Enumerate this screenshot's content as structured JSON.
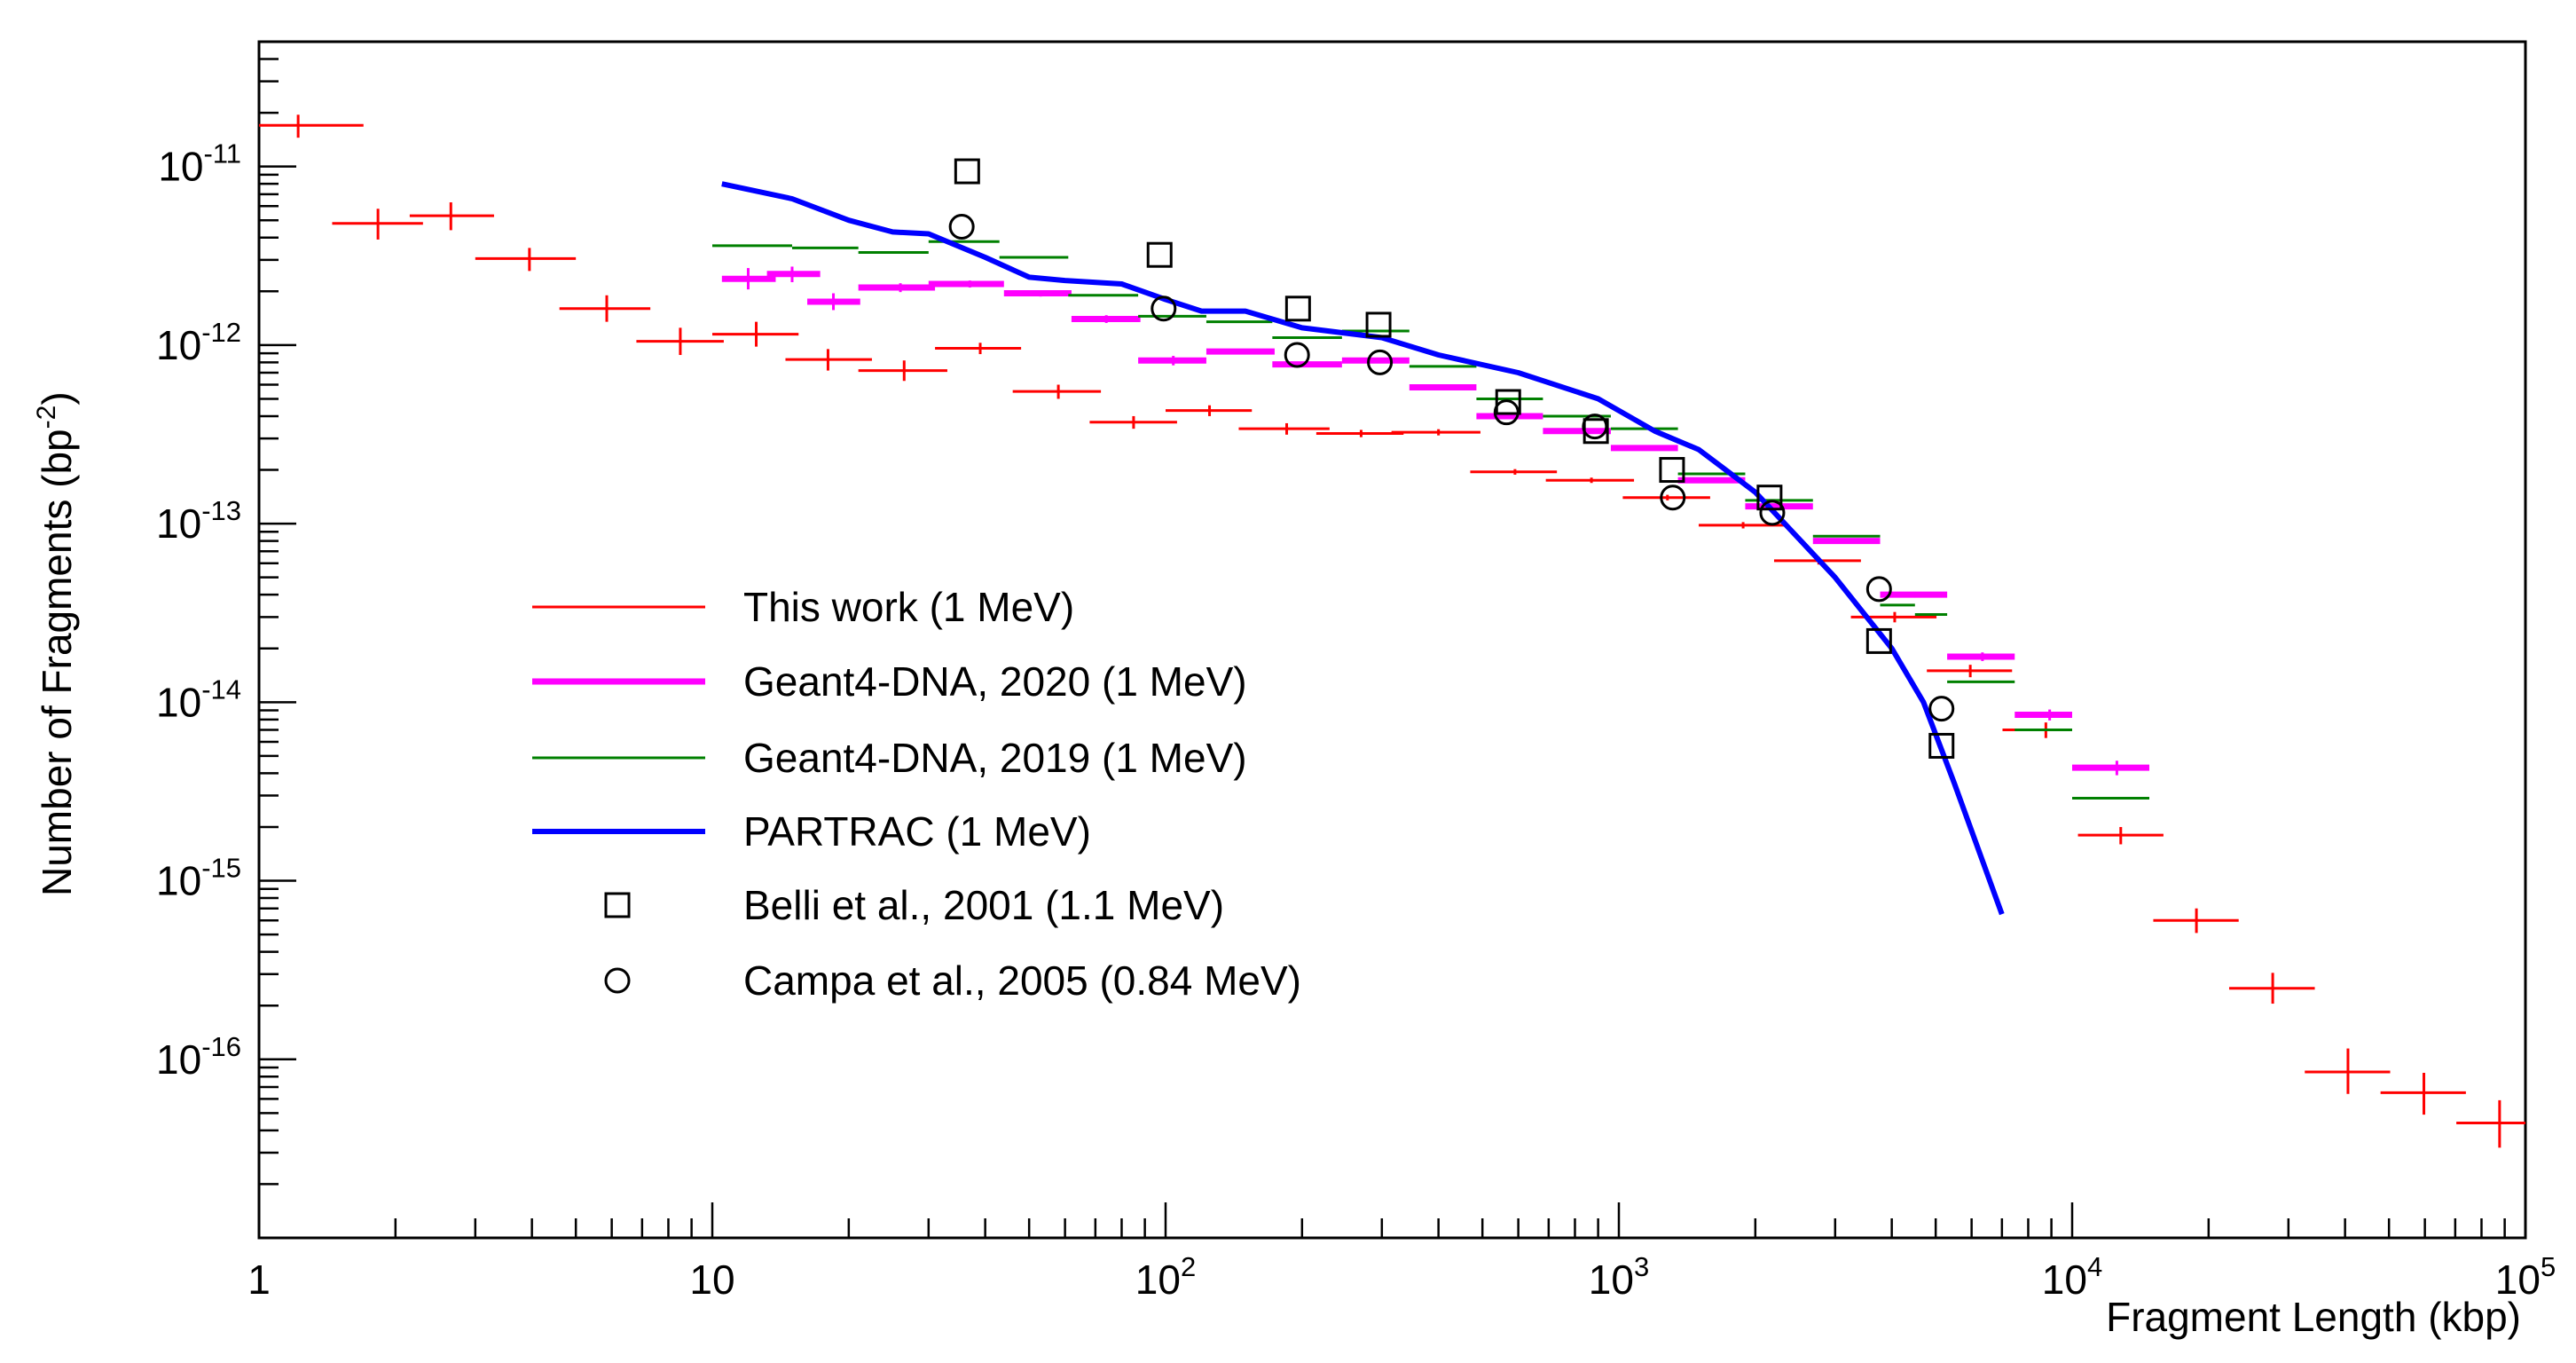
{
  "chart_data": {
    "type": "scatter",
    "xlabel": "Fragment Length (kbp)",
    "ylabel": "Number of Fragments (bp",
    "ylabel_sup": "-2",
    "ylabel_close": ")",
    "x_scale": "log",
    "y_scale": "log",
    "xlim": [
      1,
      100000
    ],
    "ylim": [
      1e-17,
      5e-11
    ],
    "grid": false,
    "legend_position": "center-left",
    "x_ticks": [
      {
        "value": 1,
        "base": "1",
        "exp": ""
      },
      {
        "value": 10,
        "base": "10",
        "exp": ""
      },
      {
        "value": 100,
        "base": "10",
        "exp": "2"
      },
      {
        "value": 1000,
        "base": "10",
        "exp": "3"
      },
      {
        "value": 10000,
        "base": "10",
        "exp": "4"
      },
      {
        "value": 100000,
        "base": "10",
        "exp": "5"
      }
    ],
    "y_ticks": [
      {
        "value": 1e-11,
        "base": "10",
        "exp": "-11"
      },
      {
        "value": 1e-12,
        "base": "10",
        "exp": "-12"
      },
      {
        "value": 1e-13,
        "base": "10",
        "exp": "-13"
      },
      {
        "value": 1e-14,
        "base": "10",
        "exp": "-14"
      },
      {
        "value": 1e-15,
        "base": "10",
        "exp": "-15"
      },
      {
        "value": 1e-16,
        "base": "10",
        "exp": "-16"
      }
    ],
    "series": [
      {
        "name": "This work (1 MeV)",
        "kind": "errorbar",
        "color": "#ff0000",
        "points": [
          {
            "x": 1.22,
            "y": 1.7e-11,
            "xlo": 1.0,
            "xhi": 1.7,
            "ylo": 1.45e-11,
            "yhi": 1.95e-11
          },
          {
            "x": 1.83,
            "y": 4.8e-12,
            "xlo": 1.45,
            "xhi": 2.3,
            "ylo": 3.9e-12,
            "yhi": 5.8e-12
          },
          {
            "x": 2.65,
            "y": 5.3e-12,
            "xlo": 2.15,
            "xhi": 3.3,
            "ylo": 4.4e-12,
            "yhi": 6.3e-12
          },
          {
            "x": 3.95,
            "y": 3.05e-12,
            "xlo": 3.0,
            "xhi": 5.0,
            "ylo": 2.6e-12,
            "yhi": 3.5e-12
          },
          {
            "x": 5.85,
            "y": 1.6e-12,
            "xlo": 4.6,
            "xhi": 7.3,
            "ylo": 1.35e-12,
            "yhi": 1.9e-12
          },
          {
            "x": 8.5,
            "y": 1.05e-12,
            "xlo": 6.8,
            "xhi": 10.6,
            "ylo": 8.8e-13,
            "yhi": 1.25e-12
          },
          {
            "x": 12.5,
            "y": 1.15e-12,
            "xlo": 10.0,
            "xhi": 15.5,
            "ylo": 9.8e-13,
            "yhi": 1.35e-12
          },
          {
            "x": 18.0,
            "y": 8.3e-13,
            "xlo": 14.5,
            "xhi": 22.5,
            "ylo": 7.2e-13,
            "yhi": 9.5e-13
          },
          {
            "x": 26.5,
            "y": 7.2e-13,
            "xlo": 21.0,
            "xhi": 33.0,
            "ylo": 6.3e-13,
            "yhi": 8.2e-13
          },
          {
            "x": 39.0,
            "y": 9.6e-13,
            "xlo": 31.0,
            "xhi": 48.0,
            "ylo": 8.9e-13,
            "yhi": 1.03e-12
          },
          {
            "x": 58.0,
            "y": 5.5e-13,
            "xlo": 46.0,
            "xhi": 72.0,
            "ylo": 5e-13,
            "yhi": 6e-13
          },
          {
            "x": 85.0,
            "y": 3.7e-13,
            "xlo": 68.0,
            "xhi": 106.0,
            "ylo": 3.4e-13,
            "yhi": 4e-13
          },
          {
            "x": 125.0,
            "y": 4.3e-13,
            "xlo": 100.0,
            "xhi": 155.0,
            "ylo": 4e-13,
            "yhi": 4.6e-13
          },
          {
            "x": 185.0,
            "y": 3.4e-13,
            "xlo": 145.0,
            "xhi": 230.0,
            "ylo": 3.15e-13,
            "yhi": 3.65e-13
          },
          {
            "x": 270.0,
            "y": 3.2e-13,
            "xlo": 215.0,
            "xhi": 335.0,
            "ylo": 3.05e-13,
            "yhi": 3.35e-13
          },
          {
            "x": 400.0,
            "y": 3.25e-13,
            "xlo": 315.0,
            "xhi": 495.0,
            "ylo": 3.12e-13,
            "yhi": 3.38e-13
          },
          {
            "x": 590.0,
            "y": 1.95e-13,
            "xlo": 470.0,
            "xhi": 730.0,
            "ylo": 1.88e-13,
            "yhi": 2.02e-13
          },
          {
            "x": 870.0,
            "y": 1.75e-13,
            "xlo": 690.0,
            "xhi": 1080.0,
            "ylo": 1.69e-13,
            "yhi": 1.81e-13
          },
          {
            "x": 1280.0,
            "y": 1.4e-13,
            "xlo": 1020.0,
            "xhi": 1590.0,
            "ylo": 1.35e-13,
            "yhi": 1.45e-13
          },
          {
            "x": 1880.0,
            "y": 9.8e-14,
            "xlo": 1500.0,
            "xhi": 2330.0,
            "ylo": 9.4e-14,
            "yhi": 1.02e-13
          },
          {
            "x": 2760.0,
            "y": 6.2e-14,
            "xlo": 2200.0,
            "xhi": 3420.0,
            "ylo": 5.9e-14,
            "yhi": 6.5e-14
          },
          {
            "x": 4060.0,
            "y": 3e-14,
            "xlo": 3250.0,
            "xhi": 5020.0,
            "ylo": 2.8e-14,
            "yhi": 3.2e-14
          },
          {
            "x": 5960.0,
            "y": 1.5e-14,
            "xlo": 4780.0,
            "xhi": 7370.0,
            "ylo": 1.38e-14,
            "yhi": 1.62e-14
          },
          {
            "x": 8750.0,
            "y": 7e-15,
            "xlo": 7020.0,
            "xhi": 10000.0,
            "ylo": 6.3e-15,
            "yhi": 7.7e-15
          },
          {
            "x": 12800.0,
            "y": 1.8e-15,
            "xlo": 10300.0,
            "xhi": 15900.0,
            "ylo": 1.6e-15,
            "yhi": 2e-15
          },
          {
            "x": 18800.0,
            "y": 6e-16,
            "xlo": 15100.0,
            "xhi": 23300.0,
            "ylo": 5.1e-16,
            "yhi": 7e-16
          },
          {
            "x": 27700.0,
            "y": 2.5e-16,
            "xlo": 22200.0,
            "xhi": 34300.0,
            "ylo": 2.05e-16,
            "yhi": 3.05e-16
          },
          {
            "x": 40600.0,
            "y": 8.5e-17,
            "xlo": 32600.0,
            "xhi": 50300.0,
            "ylo": 6.4e-17,
            "yhi": 1.15e-16
          },
          {
            "x": 59700.0,
            "y": 6.5e-17,
            "xlo": 47900.0,
            "xhi": 73900.0,
            "ylo": 4.9e-17,
            "yhi": 8.4e-17
          },
          {
            "x": 87700.0,
            "y": 4.4e-17,
            "xlo": 70400.0,
            "xhi": 100000.0,
            "ylo": 3.2e-17,
            "yhi": 5.9e-17
          }
        ]
      },
      {
        "name": "Geant4-DNA, 2020 (1 MeV)",
        "kind": "errorbar",
        "color": "#ff00ff",
        "points": [
          {
            "x": 12.0,
            "y": 2.35e-12,
            "xlo": 10.5,
            "xhi": 13.8,
            "ylo": 2.05e-12,
            "yhi": 2.7e-12
          },
          {
            "x": 15.0,
            "y": 2.5e-12,
            "xlo": 13.2,
            "xhi": 17.3,
            "ylo": 2.25e-12,
            "yhi": 2.75e-12
          },
          {
            "x": 18.5,
            "y": 1.75e-12,
            "xlo": 16.2,
            "xhi": 21.2,
            "ylo": 1.57e-12,
            "yhi": 1.95e-12
          },
          {
            "x": 26.0,
            "y": 2.1e-12,
            "xlo": 21.0,
            "xhi": 31.0,
            "ylo": 1.98e-12,
            "yhi": 2.22e-12
          },
          {
            "x": 37.0,
            "y": 2.2e-12,
            "xlo": 30.0,
            "xhi": 44.0,
            "ylo": 2.1e-12,
            "yhi": 2.3e-12
          },
          {
            "x": 53.0,
            "y": 1.95e-12,
            "xlo": 44.0,
            "xhi": 62.0,
            "ylo": 1.87e-12,
            "yhi": 2.03e-12
          },
          {
            "x": 74.0,
            "y": 1.4e-12,
            "xlo": 62.0,
            "xhi": 88.0,
            "ylo": 1.33e-12,
            "yhi": 1.47e-12
          },
          {
            "x": 104.0,
            "y": 8.2e-13,
            "xlo": 87.0,
            "xhi": 123.0,
            "ylo": 7.7e-13,
            "yhi": 8.7e-13
          },
          {
            "x": 147.0,
            "y": 9.2e-13,
            "xlo": 123.0,
            "xhi": 174.0,
            "ylo": 8.9e-13,
            "yhi": 9.5e-13
          },
          {
            "x": 207.0,
            "y": 7.8e-13,
            "xlo": 172.0,
            "xhi": 245.0,
            "ylo": 7.6e-13,
            "yhi": 8e-13
          },
          {
            "x": 290.0,
            "y": 8.2e-13,
            "xlo": 245.0,
            "xhi": 345.0,
            "ylo": 8e-13,
            "yhi": 8.4e-13
          },
          {
            "x": 410.0,
            "y": 5.8e-13,
            "xlo": 345.0,
            "xhi": 485.0,
            "ylo": 5.7e-13,
            "yhi": 5.9e-13
          },
          {
            "x": 580.0,
            "y": 4e-13,
            "xlo": 485.0,
            "xhi": 680.0,
            "ylo": 3.93e-13,
            "yhi": 4.07e-13
          },
          {
            "x": 815.0,
            "y": 3.3e-13,
            "xlo": 680.0,
            "xhi": 960.0,
            "ylo": 3.24e-13,
            "yhi": 3.36e-13
          },
          {
            "x": 1150.0,
            "y": 2.65e-13,
            "xlo": 960.0,
            "xhi": 1350.0,
            "ylo": 2.6e-13,
            "yhi": 2.7e-13
          },
          {
            "x": 1620.0,
            "y": 1.75e-13,
            "xlo": 1350.0,
            "xhi": 1900.0,
            "ylo": 1.72e-13,
            "yhi": 1.78e-13
          },
          {
            "x": 2280.0,
            "y": 1.25e-13,
            "xlo": 1900.0,
            "xhi": 2680.0,
            "ylo": 1.22e-13,
            "yhi": 1.28e-13
          },
          {
            "x": 3200.0,
            "y": 8e-14,
            "xlo": 2680.0,
            "xhi": 3770.0,
            "ylo": 7.8e-14,
            "yhi": 8.2e-14
          },
          {
            "x": 4500.0,
            "y": 4e-14,
            "xlo": 3770.0,
            "xhi": 5300.0,
            "ylo": 3.85e-14,
            "yhi": 4.15e-14
          },
          {
            "x": 6340.0,
            "y": 1.8e-14,
            "xlo": 5300.0,
            "xhi": 7470.0,
            "ylo": 1.7e-14,
            "yhi": 1.9e-14
          },
          {
            "x": 8920.0,
            "y": 8.5e-15,
            "xlo": 7470.0,
            "xhi": 10000.0,
            "ylo": 7.9e-15,
            "yhi": 9.1e-15
          },
          {
            "x": 12550.0,
            "y": 4.3e-15,
            "xlo": 10000.0,
            "xhi": 14800.0,
            "ylo": 3.9e-15,
            "yhi": 4.7e-15
          }
        ]
      },
      {
        "name": "Geant4-DNA, 2019 (1 MeV)",
        "kind": "step",
        "color": "#008000",
        "points": [
          {
            "xlo": 10.0,
            "xhi": 15.0,
            "y": 3.6e-12
          },
          {
            "xlo": 15.0,
            "xhi": 21.0,
            "y": 3.5e-12
          },
          {
            "xlo": 21.0,
            "xhi": 30.0,
            "y": 3.3e-12
          },
          {
            "xlo": 30.0,
            "xhi": 43.0,
            "y": 3.8e-12
          },
          {
            "xlo": 43.0,
            "xhi": 61.0,
            "y": 3.1e-12
          },
          {
            "xlo": 61.0,
            "xhi": 87.0,
            "y": 1.9e-12
          },
          {
            "xlo": 87.0,
            "xhi": 123.0,
            "y": 1.45e-12
          },
          {
            "xlo": 123.0,
            "xhi": 172.0,
            "y": 1.35e-12
          },
          {
            "xlo": 172.0,
            "xhi": 245.0,
            "y": 1.1e-12
          },
          {
            "xlo": 245.0,
            "xhi": 345.0,
            "y": 1.2e-12
          },
          {
            "xlo": 345.0,
            "xhi": 485.0,
            "y": 7.6e-13
          },
          {
            "xlo": 485.0,
            "xhi": 680.0,
            "y": 5e-13
          },
          {
            "xlo": 680.0,
            "xhi": 960.0,
            "y": 4e-13
          },
          {
            "xlo": 960.0,
            "xhi": 1350.0,
            "y": 3.4e-13
          },
          {
            "xlo": 1350.0,
            "xhi": 1900.0,
            "y": 1.9e-13
          },
          {
            "xlo": 1900.0,
            "xhi": 2680.0,
            "y": 1.35e-13
          },
          {
            "xlo": 2680.0,
            "xhi": 3770.0,
            "y": 8.5e-14
          },
          {
            "xlo": 3770.0,
            "xhi": 4500.0,
            "y": 3.5e-14
          },
          {
            "xlo": 4500.0,
            "xhi": 5300.0,
            "y": 3.1e-14
          },
          {
            "xlo": 5300.0,
            "xhi": 7470.0,
            "y": 1.3e-14
          },
          {
            "xlo": 7470.0,
            "xhi": 10000.0,
            "y": 7e-15
          },
          {
            "xlo": 10000.0,
            "xhi": 14800.0,
            "y": 2.9e-15
          }
        ]
      },
      {
        "name": "PARTRAC (1 MeV)",
        "kind": "line",
        "color": "#0000ff",
        "points": [
          {
            "x": 10.5,
            "y": 8e-12
          },
          {
            "x": 15.0,
            "y": 6.6e-12
          },
          {
            "x": 20.0,
            "y": 5e-12
          },
          {
            "x": 25.0,
            "y": 4.3e-12
          },
          {
            "x": 30.0,
            "y": 4.2e-12
          },
          {
            "x": 40.0,
            "y": 3.1e-12
          },
          {
            "x": 50.0,
            "y": 2.4e-12
          },
          {
            "x": 60.0,
            "y": 2.3e-12
          },
          {
            "x": 80.0,
            "y": 2.2e-12
          },
          {
            "x": 100.0,
            "y": 1.8e-12
          },
          {
            "x": 120.0,
            "y": 1.55e-12
          },
          {
            "x": 150.0,
            "y": 1.55e-12
          },
          {
            "x": 200.0,
            "y": 1.25e-12
          },
          {
            "x": 300.0,
            "y": 1.1e-12
          },
          {
            "x": 400.0,
            "y": 8.8e-13
          },
          {
            "x": 600.0,
            "y": 7e-13
          },
          {
            "x": 900.0,
            "y": 5e-13
          },
          {
            "x": 1200.0,
            "y": 3.3e-13
          },
          {
            "x": 1500.0,
            "y": 2.6e-13
          },
          {
            "x": 2000.0,
            "y": 1.5e-13
          },
          {
            "x": 3000.0,
            "y": 5e-14
          },
          {
            "x": 4000.0,
            "y": 2e-14
          },
          {
            "x": 4700.0,
            "y": 1e-14
          },
          {
            "x": 5500.0,
            "y": 3.5e-15
          },
          {
            "x": 7000.0,
            "y": 6.5e-16
          }
        ]
      },
      {
        "name": "Belli et al., 2001 (1.1 MeV)",
        "kind": "marker-square",
        "color": "#000000",
        "points": [
          {
            "x": 36.5,
            "y": 9.4e-12
          },
          {
            "x": 97.0,
            "y": 3.2e-12
          },
          {
            "x": 196.0,
            "y": 1.6e-12
          },
          {
            "x": 295.0,
            "y": 1.3e-12
          },
          {
            "x": 570.0,
            "y": 4.8e-13
          },
          {
            "x": 890.0,
            "y": 3.3e-13
          },
          {
            "x": 1310.0,
            "y": 2e-13
          },
          {
            "x": 2150.0,
            "y": 1.4e-13
          },
          {
            "x": 3750.0,
            "y": 2.2e-14
          },
          {
            "x": 5150.0,
            "y": 5.7e-15
          }
        ]
      },
      {
        "name": "Campa et al., 2005 (0.84 MeV)",
        "kind": "marker-circle",
        "color": "#000000",
        "points": [
          {
            "x": 35.5,
            "y": 4.6e-12
          },
          {
            "x": 99.0,
            "y": 1.6e-12
          },
          {
            "x": 195.0,
            "y": 8.8e-13
          },
          {
            "x": 297.0,
            "y": 8e-13
          },
          {
            "x": 565.0,
            "y": 4.2e-13
          },
          {
            "x": 885.0,
            "y": 3.5e-13
          },
          {
            "x": 1315.0,
            "y": 1.4e-13
          },
          {
            "x": 2180.0,
            "y": 1.15e-13
          },
          {
            "x": 3750.0,
            "y": 4.3e-14
          },
          {
            "x": 5150.0,
            "y": 9.2e-15
          }
        ]
      }
    ]
  }
}
